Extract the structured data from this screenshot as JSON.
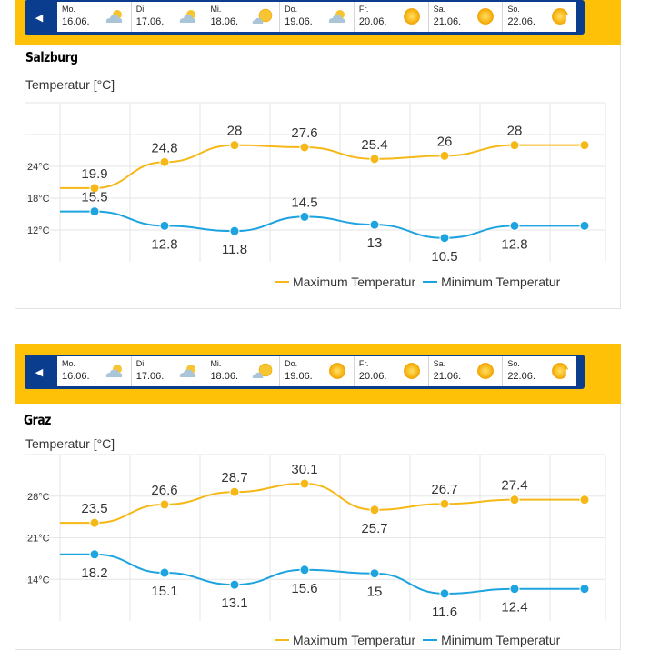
{
  "colors": {
    "band": "#ffc107",
    "nav": "#0b3d8f",
    "max_series": "#f6b817",
    "min_series": "#1ca3e0",
    "grid": "#e6e6e6"
  },
  "nav_icons": {
    "prev": "chevron-left-icon",
    "next": "chevron-right-icon"
  },
  "chart_data": [
    {
      "type": "line",
      "city": "Salzburg",
      "title": "Temperatur [°C]",
      "days": [
        {
          "name": "Mo.",
          "date": "16.06.",
          "icon": "partly-cloudy-icon"
        },
        {
          "name": "Di.",
          "date": "17.06.",
          "icon": "partly-cloudy-icon"
        },
        {
          "name": "Mi.",
          "date": "18.06.",
          "icon": "sun-cloud-icon"
        },
        {
          "name": "Do.",
          "date": "19.06.",
          "icon": "partly-cloudy-icon"
        },
        {
          "name": "Fr.",
          "date": "20.06.",
          "icon": "sun-icon"
        },
        {
          "name": "Sa.",
          "date": "21.06.",
          "icon": "sun-icon"
        },
        {
          "name": "So.",
          "date": "22.06.",
          "icon": "sun-icon"
        }
      ],
      "y_ticks": [
        {
          "label": "24°C",
          "value": 24
        },
        {
          "label": "18°C",
          "value": 18
        },
        {
          "label": "12°C",
          "value": 12
        }
      ],
      "ylim": [
        6,
        36
      ],
      "series": [
        {
          "name": "Maximum Temperatur",
          "values": [
            19.9,
            24.8,
            28,
            27.6,
            25.4,
            26,
            28
          ]
        },
        {
          "name": "Minimum Temperatur",
          "values": [
            15.5,
            12.8,
            11.8,
            14.5,
            13,
            10.5,
            12.8
          ]
        }
      ],
      "legend": "bottom-right"
    },
    {
      "type": "line",
      "city": "Graz",
      "title": "Temperatur [°C]",
      "days": [
        {
          "name": "Mo.",
          "date": "16.06.",
          "icon": "partly-cloudy-icon"
        },
        {
          "name": "Di.",
          "date": "17.06.",
          "icon": "partly-cloudy-icon"
        },
        {
          "name": "Mi.",
          "date": "18.06.",
          "icon": "sun-cloud-icon"
        },
        {
          "name": "Do.",
          "date": "19.06.",
          "icon": "sun-icon"
        },
        {
          "name": "Fr.",
          "date": "20.06.",
          "icon": "sun-icon"
        },
        {
          "name": "Sa.",
          "date": "21.06.",
          "icon": "sun-icon"
        },
        {
          "name": "So.",
          "date": "22.06.",
          "icon": "sun-icon"
        }
      ],
      "y_ticks": [
        {
          "label": "28°C",
          "value": 28
        },
        {
          "label": "21°C",
          "value": 21
        },
        {
          "label": "14°C",
          "value": 14
        }
      ],
      "ylim": [
        7,
        35
      ],
      "series": [
        {
          "name": "Maximum Temperatur",
          "values": [
            23.5,
            26.6,
            28.7,
            30.1,
            25.7,
            26.7,
            27.4
          ]
        },
        {
          "name": "Minimum Temperatur",
          "values": [
            18.2,
            15.1,
            13.1,
            15.6,
            15,
            11.6,
            12.4
          ]
        }
      ],
      "legend": "bottom-right"
    }
  ]
}
